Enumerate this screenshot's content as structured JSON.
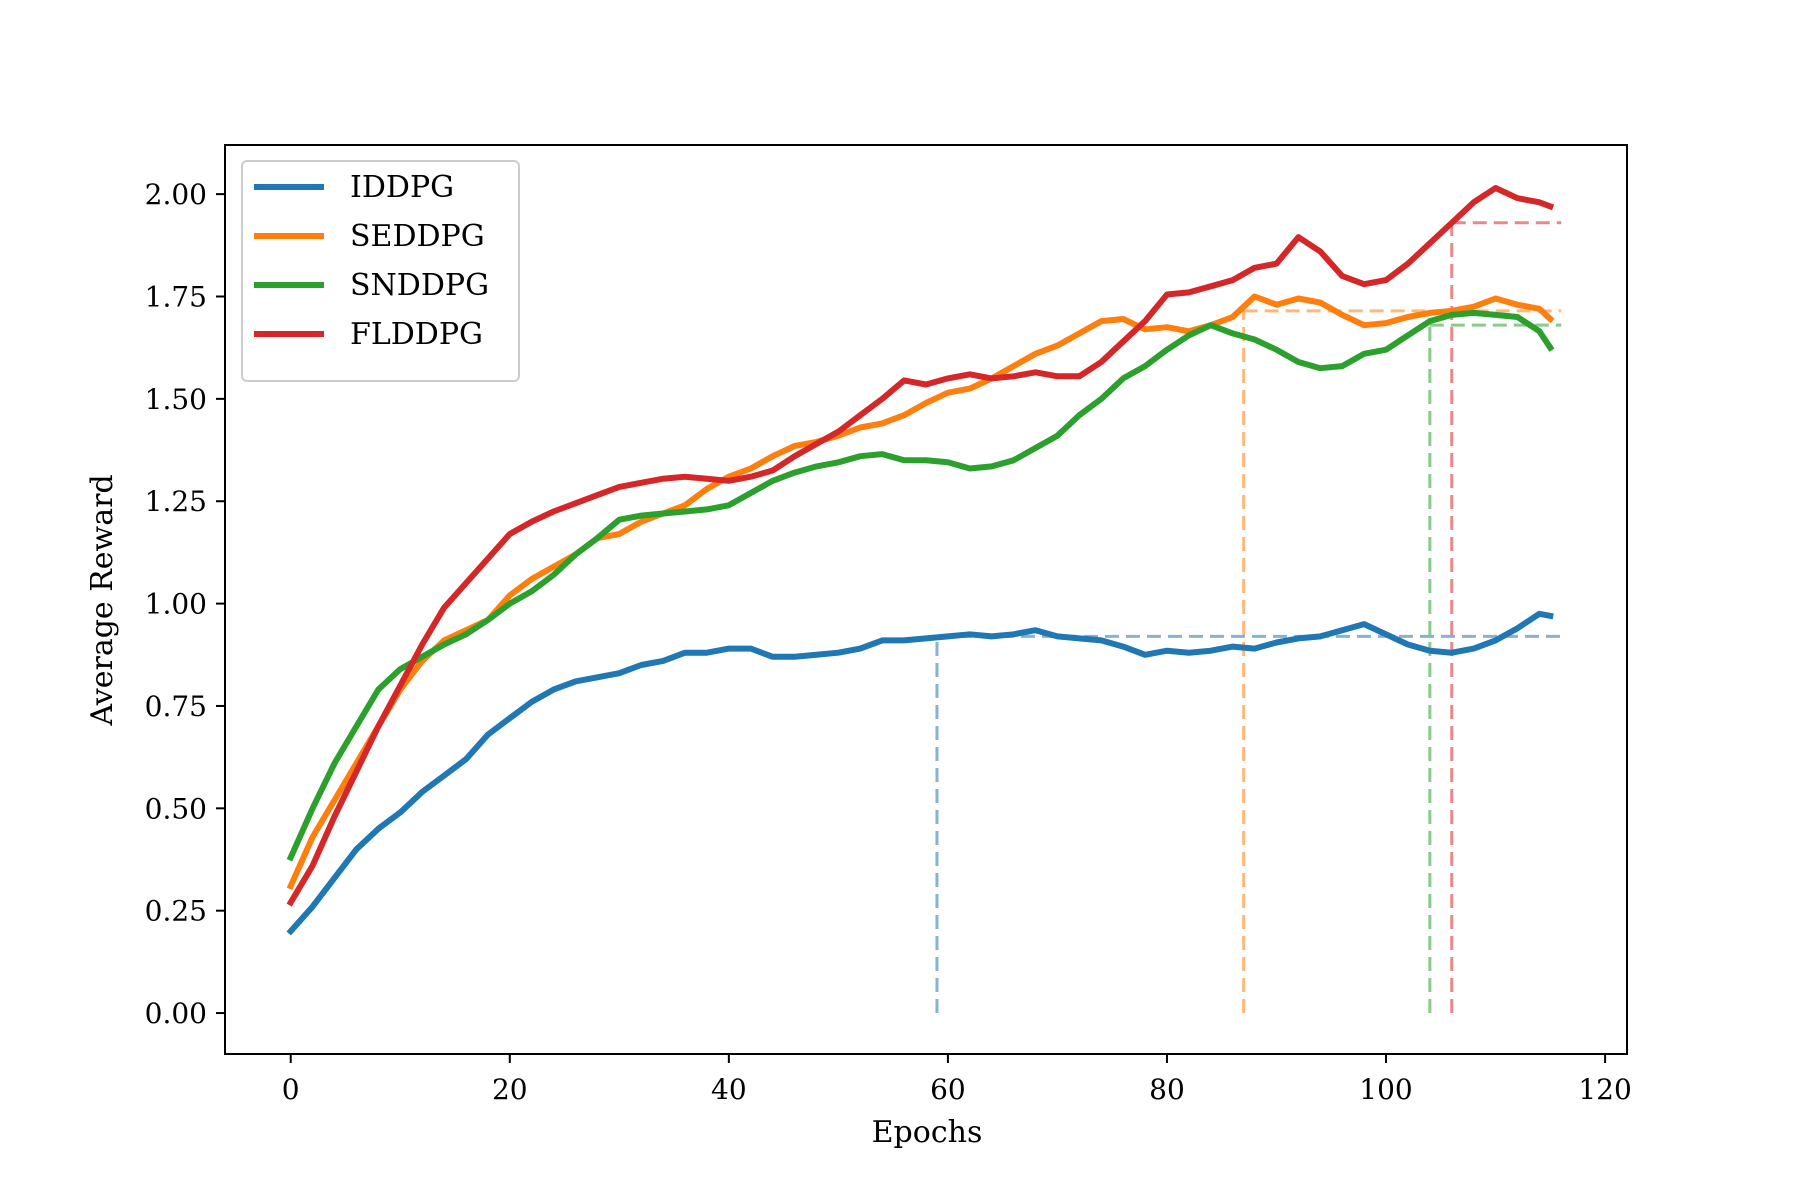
{
  "chart_data": {
    "type": "line",
    "xlabel": "Epochs",
    "ylabel": "Average Reward",
    "xlim": [
      -6,
      122
    ],
    "ylim": [
      -0.1,
      2.12
    ],
    "xticks": [
      0,
      20,
      40,
      60,
      80,
      100,
      120
    ],
    "xtick_labels": [
      "0",
      "20",
      "40",
      "60",
      "80",
      "100",
      "120"
    ],
    "yticks": [
      0,
      0.25,
      0.5,
      0.75,
      1.0,
      1.25,
      1.5,
      1.75,
      2.0
    ],
    "ytick_labels": [
      "0.00",
      "0.25",
      "0.50",
      "0.75",
      "1.00",
      "1.25",
      "1.50",
      "1.75",
      "2.00"
    ],
    "grid": false,
    "legend_position": "top-left",
    "series": [
      {
        "name": "IDDPG",
        "color": "#1f77b4",
        "points": [
          [
            0,
            0.2
          ],
          [
            2,
            0.26
          ],
          [
            4,
            0.33
          ],
          [
            6,
            0.4
          ],
          [
            8,
            0.45
          ],
          [
            10,
            0.49
          ],
          [
            12,
            0.54
          ],
          [
            14,
            0.58
          ],
          [
            16,
            0.62
          ],
          [
            18,
            0.68
          ],
          [
            20,
            0.72
          ],
          [
            22,
            0.76
          ],
          [
            24,
            0.79
          ],
          [
            26,
            0.81
          ],
          [
            28,
            0.82
          ],
          [
            30,
            0.83
          ],
          [
            32,
            0.85
          ],
          [
            34,
            0.86
          ],
          [
            36,
            0.88
          ],
          [
            38,
            0.88
          ],
          [
            40,
            0.89
          ],
          [
            42,
            0.89
          ],
          [
            44,
            0.87
          ],
          [
            46,
            0.87
          ],
          [
            48,
            0.875
          ],
          [
            50,
            0.88
          ],
          [
            52,
            0.89
          ],
          [
            54,
            0.91
          ],
          [
            56,
            0.91
          ],
          [
            58,
            0.915
          ],
          [
            60,
            0.92
          ],
          [
            62,
            0.925
          ],
          [
            64,
            0.92
          ],
          [
            66,
            0.925
          ],
          [
            68,
            0.935
          ],
          [
            70,
            0.92
          ],
          [
            72,
            0.915
          ],
          [
            74,
            0.91
          ],
          [
            76,
            0.895
          ],
          [
            78,
            0.875
          ],
          [
            80,
            0.885
          ],
          [
            82,
            0.88
          ],
          [
            84,
            0.885
          ],
          [
            86,
            0.895
          ],
          [
            88,
            0.89
          ],
          [
            90,
            0.905
          ],
          [
            92,
            0.915
          ],
          [
            94,
            0.92
          ],
          [
            96,
            0.935
          ],
          [
            98,
            0.95
          ],
          [
            100,
            0.925
          ],
          [
            102,
            0.9
          ],
          [
            104,
            0.885
          ],
          [
            106,
            0.88
          ],
          [
            108,
            0.89
          ],
          [
            110,
            0.91
          ],
          [
            112,
            0.94
          ],
          [
            114,
            0.975
          ],
          [
            115,
            0.97
          ]
        ]
      },
      {
        "name": "SEDDPG",
        "color": "#ff7f0e",
        "points": [
          [
            0,
            0.31
          ],
          [
            2,
            0.43
          ],
          [
            4,
            0.52
          ],
          [
            6,
            0.61
          ],
          [
            8,
            0.7
          ],
          [
            10,
            0.79
          ],
          [
            12,
            0.86
          ],
          [
            14,
            0.91
          ],
          [
            16,
            0.935
          ],
          [
            18,
            0.96
          ],
          [
            20,
            1.02
          ],
          [
            22,
            1.06
          ],
          [
            24,
            1.09
          ],
          [
            26,
            1.12
          ],
          [
            28,
            1.16
          ],
          [
            30,
            1.17
          ],
          [
            32,
            1.2
          ],
          [
            34,
            1.22
          ],
          [
            36,
            1.24
          ],
          [
            38,
            1.28
          ],
          [
            40,
            1.31
          ],
          [
            42,
            1.33
          ],
          [
            44,
            1.36
          ],
          [
            46,
            1.385
          ],
          [
            48,
            1.395
          ],
          [
            50,
            1.41
          ],
          [
            52,
            1.43
          ],
          [
            54,
            1.44
          ],
          [
            56,
            1.46
          ],
          [
            58,
            1.49
          ],
          [
            60,
            1.515
          ],
          [
            62,
            1.525
          ],
          [
            64,
            1.55
          ],
          [
            66,
            1.58
          ],
          [
            68,
            1.61
          ],
          [
            70,
            1.63
          ],
          [
            72,
            1.66
          ],
          [
            74,
            1.69
          ],
          [
            76,
            1.695
          ],
          [
            78,
            1.67
          ],
          [
            80,
            1.675
          ],
          [
            82,
            1.665
          ],
          [
            84,
            1.68
          ],
          [
            86,
            1.7
          ],
          [
            88,
            1.75
          ],
          [
            90,
            1.73
          ],
          [
            92,
            1.745
          ],
          [
            94,
            1.735
          ],
          [
            96,
            1.705
          ],
          [
            98,
            1.68
          ],
          [
            100,
            1.685
          ],
          [
            102,
            1.7
          ],
          [
            104,
            1.71
          ],
          [
            106,
            1.715
          ],
          [
            108,
            1.725
          ],
          [
            110,
            1.745
          ],
          [
            112,
            1.73
          ],
          [
            114,
            1.72
          ],
          [
            115,
            1.695
          ]
        ]
      },
      {
        "name": "SNDDPG",
        "color": "#2ca02c",
        "points": [
          [
            0,
            0.38
          ],
          [
            2,
            0.5
          ],
          [
            4,
            0.61
          ],
          [
            6,
            0.7
          ],
          [
            8,
            0.79
          ],
          [
            10,
            0.84
          ],
          [
            12,
            0.87
          ],
          [
            14,
            0.9
          ],
          [
            16,
            0.925
          ],
          [
            18,
            0.96
          ],
          [
            20,
            1.0
          ],
          [
            22,
            1.03
          ],
          [
            24,
            1.07
          ],
          [
            26,
            1.12
          ],
          [
            28,
            1.16
          ],
          [
            30,
            1.205
          ],
          [
            32,
            1.215
          ],
          [
            34,
            1.22
          ],
          [
            36,
            1.225
          ],
          [
            38,
            1.23
          ],
          [
            40,
            1.24
          ],
          [
            42,
            1.27
          ],
          [
            44,
            1.3
          ],
          [
            46,
            1.32
          ],
          [
            48,
            1.335
          ],
          [
            50,
            1.345
          ],
          [
            52,
            1.36
          ],
          [
            54,
            1.365
          ],
          [
            56,
            1.35
          ],
          [
            58,
            1.35
          ],
          [
            60,
            1.345
          ],
          [
            62,
            1.33
          ],
          [
            64,
            1.335
          ],
          [
            66,
            1.35
          ],
          [
            68,
            1.38
          ],
          [
            70,
            1.41
          ],
          [
            72,
            1.46
          ],
          [
            74,
            1.5
          ],
          [
            76,
            1.55
          ],
          [
            78,
            1.58
          ],
          [
            80,
            1.62
          ],
          [
            82,
            1.655
          ],
          [
            84,
            1.68
          ],
          [
            86,
            1.66
          ],
          [
            88,
            1.645
          ],
          [
            90,
            1.62
          ],
          [
            92,
            1.59
          ],
          [
            94,
            1.575
          ],
          [
            96,
            1.58
          ],
          [
            98,
            1.61
          ],
          [
            100,
            1.62
          ],
          [
            102,
            1.655
          ],
          [
            104,
            1.69
          ],
          [
            106,
            1.705
          ],
          [
            108,
            1.71
          ],
          [
            110,
            1.705
          ],
          [
            112,
            1.7
          ],
          [
            114,
            1.665
          ],
          [
            115,
            1.625
          ]
        ]
      },
      {
        "name": "FLDDPG",
        "color": "#d62728",
        "points": [
          [
            0,
            0.27
          ],
          [
            2,
            0.36
          ],
          [
            4,
            0.48
          ],
          [
            6,
            0.59
          ],
          [
            8,
            0.7
          ],
          [
            10,
            0.8
          ],
          [
            12,
            0.9
          ],
          [
            14,
            0.99
          ],
          [
            16,
            1.05
          ],
          [
            18,
            1.11
          ],
          [
            20,
            1.17
          ],
          [
            22,
            1.2
          ],
          [
            24,
            1.225
          ],
          [
            26,
            1.245
          ],
          [
            28,
            1.265
          ],
          [
            30,
            1.285
          ],
          [
            32,
            1.295
          ],
          [
            34,
            1.305
          ],
          [
            36,
            1.31
          ],
          [
            38,
            1.305
          ],
          [
            40,
            1.3
          ],
          [
            42,
            1.31
          ],
          [
            44,
            1.325
          ],
          [
            46,
            1.36
          ],
          [
            48,
            1.39
          ],
          [
            50,
            1.42
          ],
          [
            52,
            1.46
          ],
          [
            54,
            1.5
          ],
          [
            56,
            1.545
          ],
          [
            58,
            1.535
          ],
          [
            60,
            1.55
          ],
          [
            62,
            1.56
          ],
          [
            64,
            1.55
          ],
          [
            66,
            1.555
          ],
          [
            68,
            1.565
          ],
          [
            70,
            1.555
          ],
          [
            72,
            1.555
          ],
          [
            74,
            1.59
          ],
          [
            76,
            1.64
          ],
          [
            78,
            1.69
          ],
          [
            80,
            1.755
          ],
          [
            82,
            1.76
          ],
          [
            84,
            1.775
          ],
          [
            86,
            1.79
          ],
          [
            88,
            1.82
          ],
          [
            90,
            1.83
          ],
          [
            92,
            1.895
          ],
          [
            94,
            1.86
          ],
          [
            96,
            1.8
          ],
          [
            98,
            1.78
          ],
          [
            100,
            1.79
          ],
          [
            102,
            1.83
          ],
          [
            104,
            1.88
          ],
          [
            106,
            1.93
          ],
          [
            108,
            1.98
          ],
          [
            110,
            2.015
          ],
          [
            112,
            1.99
          ],
          [
            114,
            1.98
          ],
          [
            115,
            1.97
          ]
        ]
      }
    ],
    "reference_lines": [
      {
        "series": "IDDPG",
        "x": 59,
        "y": 0.92,
        "x_end": 116,
        "color": "#1f77b4"
      },
      {
        "series": "SEDDPG",
        "x": 87,
        "y": 1.715,
        "x_end": 116,
        "color": "#ff7f0e"
      },
      {
        "series": "SNDDPG",
        "x": 104,
        "y": 1.68,
        "x_end": 116,
        "color": "#2ca02c"
      },
      {
        "series": "FLDDPG",
        "x": 106,
        "y": 1.93,
        "x_end": 116,
        "color": "#d62728"
      }
    ]
  }
}
